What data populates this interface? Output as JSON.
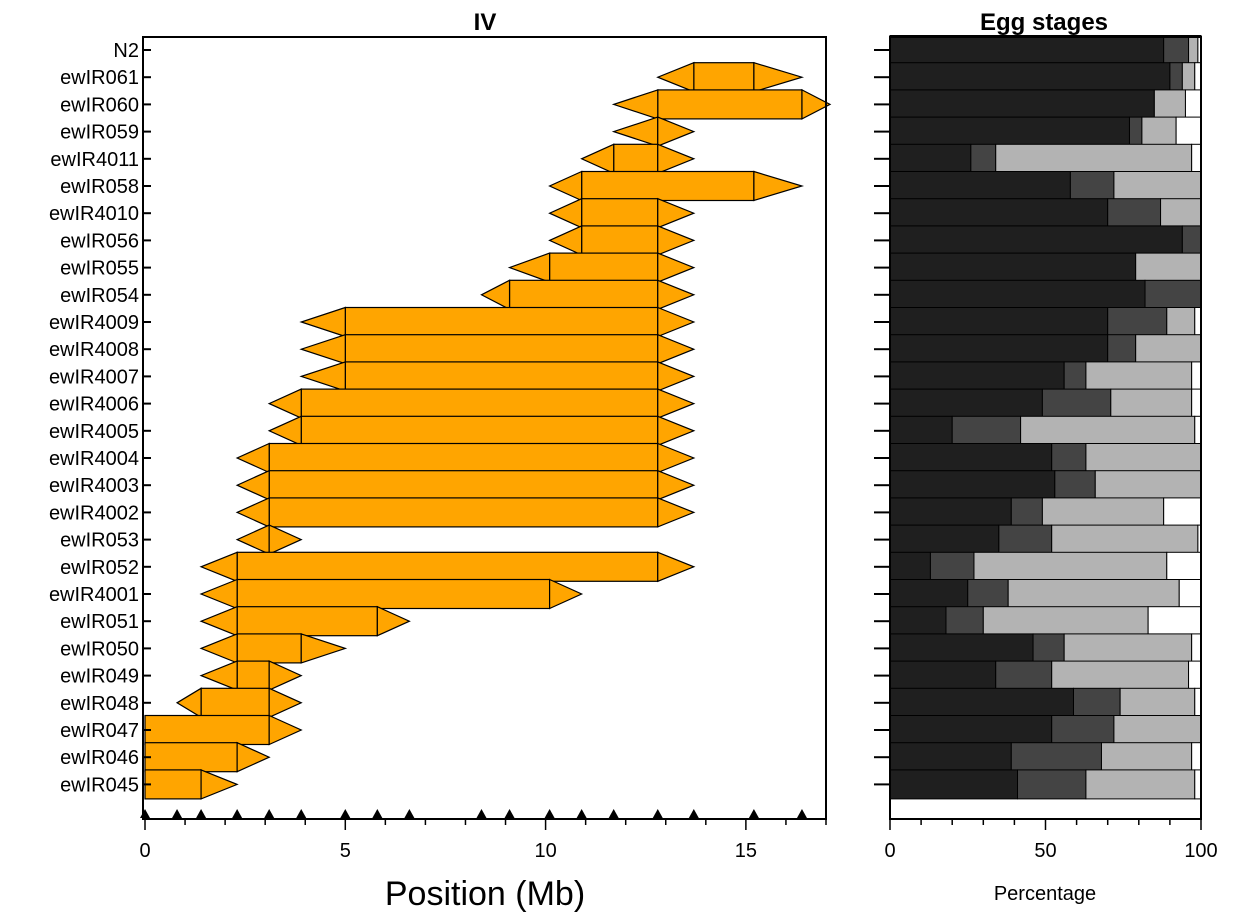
{
  "chart_data": [
    {
      "type": "bar",
      "title": "IV",
      "xlabel": "Position (Mb)",
      "xlim": [
        0,
        17
      ],
      "xticks": [
        0,
        5,
        10,
        15
      ],
      "tick_labels": [
        "0",
        "5",
        "10",
        "15"
      ],
      "categories": [
        "N2",
        "ewIR061",
        "ewIR060",
        "ewIR059",
        "ewIR4011",
        "ewIR058",
        "ewIR4010",
        "ewIR056",
        "ewIR055",
        "ewIR054",
        "ewIR4009",
        "ewIR4008",
        "ewIR4007",
        "ewIR4006",
        "ewIR4005",
        "ewIR4004",
        "ewIR4003",
        "ewIR4002",
        "ewIR053",
        "ewIR052",
        "ewIR4001",
        "ewIR051",
        "ewIR050",
        "ewIR049",
        "ewIR048",
        "ewIR047",
        "ewIR046",
        "ewIR045"
      ],
      "intervals": [
        null,
        {
          "outer_start": 12.8,
          "start": 13.7,
          "end": 15.2,
          "outer_end": 16.4
        },
        {
          "outer_start": 11.7,
          "start": 12.8,
          "end": 16.4,
          "outer_end": 17.1
        },
        {
          "outer_start": 11.7,
          "start": 12.8,
          "end": 12.8,
          "outer_end": 13.7
        },
        {
          "outer_start": 10.9,
          "start": 11.7,
          "end": 12.8,
          "outer_end": 13.7
        },
        {
          "outer_start": 10.1,
          "start": 10.9,
          "end": 15.2,
          "outer_end": 16.4
        },
        {
          "outer_start": 10.1,
          "start": 10.9,
          "end": 12.8,
          "outer_end": 13.7
        },
        {
          "outer_start": 10.1,
          "start": 10.9,
          "end": 12.8,
          "outer_end": 13.7
        },
        {
          "outer_start": 9.1,
          "start": 10.1,
          "end": 12.8,
          "outer_end": 13.7
        },
        {
          "outer_start": 8.4,
          "start": 9.1,
          "end": 12.8,
          "outer_end": 13.7
        },
        {
          "outer_start": 3.9,
          "start": 5.0,
          "end": 12.8,
          "outer_end": 13.7
        },
        {
          "outer_start": 3.9,
          "start": 5.0,
          "end": 12.8,
          "outer_end": 13.7
        },
        {
          "outer_start": 3.9,
          "start": 5.0,
          "end": 12.8,
          "outer_end": 13.7
        },
        {
          "outer_start": 3.1,
          "start": 3.9,
          "end": 12.8,
          "outer_end": 13.7
        },
        {
          "outer_start": 3.1,
          "start": 3.9,
          "end": 12.8,
          "outer_end": 13.7
        },
        {
          "outer_start": 2.3,
          "start": 3.1,
          "end": 12.8,
          "outer_end": 13.7
        },
        {
          "outer_start": 2.3,
          "start": 3.1,
          "end": 12.8,
          "outer_end": 13.7
        },
        {
          "outer_start": 2.3,
          "start": 3.1,
          "end": 12.8,
          "outer_end": 13.7
        },
        {
          "outer_start": 2.3,
          "start": 3.1,
          "end": 3.1,
          "outer_end": 3.9
        },
        {
          "outer_start": 1.4,
          "start": 2.3,
          "end": 12.8,
          "outer_end": 13.7
        },
        {
          "outer_start": 1.4,
          "start": 2.3,
          "end": 10.1,
          "outer_end": 10.9
        },
        {
          "outer_start": 1.4,
          "start": 2.3,
          "end": 5.8,
          "outer_end": 6.6
        },
        {
          "outer_start": 1.4,
          "start": 2.3,
          "end": 3.9,
          "outer_end": 5.0
        },
        {
          "outer_start": 1.4,
          "start": 2.3,
          "end": 3.1,
          "outer_end": 3.9
        },
        {
          "outer_start": 0.8,
          "start": 1.4,
          "end": 3.1,
          "outer_end": 3.9
        },
        {
          "outer_start": 0.0,
          "start": 0.0,
          "end": 3.1,
          "outer_end": 3.9
        },
        {
          "outer_start": 0.0,
          "start": 0.0,
          "end": 2.3,
          "outer_end": 3.1
        },
        {
          "outer_start": 0.0,
          "start": 0.0,
          "end": 1.4,
          "outer_end": 2.3
        }
      ],
      "marker_positions": [
        0,
        0.8,
        1.4,
        2.3,
        3.1,
        3.9,
        5.0,
        5.8,
        6.6,
        8.4,
        9.1,
        10.1,
        10.9,
        11.7,
        12.8,
        13.7,
        15.2,
        16.4
      ],
      "bar_color": "#FFA500",
      "grid": false
    },
    {
      "type": "bar",
      "stacked": true,
      "title": "Egg stages",
      "xlabel": "Percentage",
      "xlim": [
        0,
        100
      ],
      "xticks": [
        0,
        50,
        100
      ],
      "tick_labels": [
        "0",
        "50",
        "100"
      ],
      "categories": [
        "N2",
        "ewIR061",
        "ewIR060",
        "ewIR059",
        "ewIR4011",
        "ewIR058",
        "ewIR4010",
        "ewIR056",
        "ewIR055",
        "ewIR054",
        "ewIR4009",
        "ewIR4008",
        "ewIR4007",
        "ewIR4006",
        "ewIR4005",
        "ewIR4004",
        "ewIR4003",
        "ewIR4002",
        "ewIR053",
        "ewIR052",
        "ewIR4001",
        "ewIR051",
        "ewIR050",
        "ewIR049",
        "ewIR048",
        "ewIR047",
        "ewIR046",
        "ewIR045"
      ],
      "series": [
        {
          "color": "#1f1f1f",
          "values": [
            88,
            90,
            85,
            77,
            26,
            58,
            70,
            94,
            79,
            82,
            70,
            70,
            56,
            49,
            20,
            52,
            53,
            39,
            35,
            13,
            25,
            18,
            46,
            34,
            59,
            52,
            39,
            41
          ]
        },
        {
          "color": "#444444",
          "values": [
            8,
            4,
            0,
            4,
            8,
            14,
            17,
            6,
            0,
            18,
            19,
            9,
            7,
            22,
            22,
            11,
            13,
            10,
            17,
            14,
            13,
            12,
            10,
            18,
            15,
            20,
            29,
            22
          ]
        },
        {
          "color": "#b3b3b3",
          "values": [
            3,
            4,
            10,
            11,
            63,
            28,
            13,
            0,
            21,
            0,
            9,
            21,
            34,
            26,
            56,
            37,
            34,
            39,
            47,
            62,
            55,
            53,
            41,
            44,
            24,
            28,
            29,
            35
          ]
        },
        {
          "color": "#ffffff",
          "values": [
            1,
            2,
            5,
            8,
            3,
            0,
            0,
            0,
            0,
            0,
            2,
            0,
            3,
            3,
            2,
            0,
            0,
            12,
            1,
            11,
            7,
            17,
            3,
            4,
            2,
            0,
            3,
            2
          ]
        }
      ],
      "grid": false
    }
  ]
}
